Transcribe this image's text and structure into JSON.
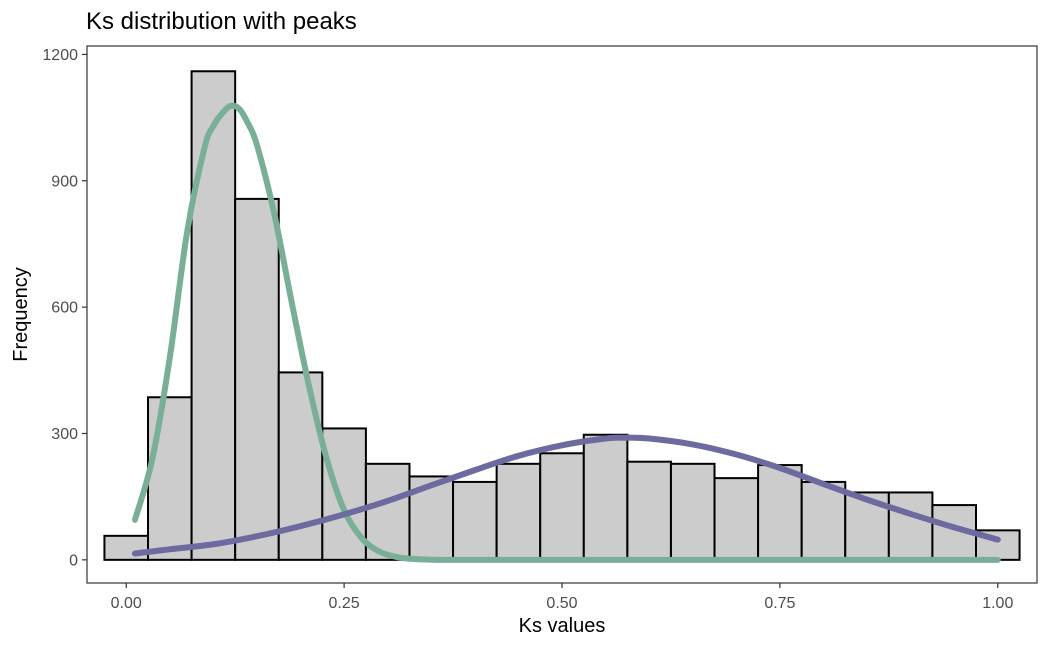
{
  "chart_data": {
    "type": "bar",
    "title": "Ks distribution with peaks",
    "xlabel": "Ks values",
    "ylabel": "Frequency",
    "xlim": [
      -0.045,
      1.045
    ],
    "ylim": [
      -55,
      1220
    ],
    "x_ticks": [
      0.0,
      0.25,
      0.5,
      0.75,
      1.0
    ],
    "x_tick_labels": [
      "0.00",
      "0.25",
      "0.50",
      "0.75",
      "1.00"
    ],
    "y_ticks": [
      0,
      300,
      600,
      900,
      1200
    ],
    "y_tick_labels": [
      "0",
      "300",
      "600",
      "900",
      "1200"
    ],
    "grid": false,
    "bin_width": 0.05,
    "bin_centers": [
      0.0,
      0.05,
      0.1,
      0.15,
      0.2,
      0.25,
      0.3,
      0.35,
      0.4,
      0.45,
      0.5,
      0.55,
      0.6,
      0.65,
      0.7,
      0.75,
      0.8,
      0.85,
      0.9,
      0.95,
      1.0
    ],
    "values": [
      57,
      386,
      1160,
      857,
      445,
      312,
      228,
      198,
      185,
      228,
      253,
      297,
      233,
      228,
      194,
      225,
      185,
      160,
      160,
      130,
      70
    ],
    "bar_fill": "#cccccc",
    "bar_stroke": "#000000",
    "series": [
      {
        "type": "line",
        "color": "#7aaf97",
        "x": [
          0.01,
          0.03,
          0.05,
          0.07,
          0.09,
          0.1,
          0.11,
          0.12,
          0.13,
          0.14,
          0.15,
          0.17,
          0.19,
          0.21,
          0.23,
          0.25,
          0.27,
          0.29,
          0.31,
          0.33,
          0.36,
          0.4,
          0.5,
          0.6,
          0.7,
          0.8,
          0.9,
          1.0
        ],
        "y": [
          95,
          240,
          480,
          780,
          980,
          1030,
          1060,
          1078,
          1070,
          1035,
          985,
          820,
          610,
          410,
          240,
          118,
          52,
          20,
          7,
          2,
          0,
          0,
          0,
          0,
          0,
          0,
          0,
          0
        ]
      },
      {
        "type": "line",
        "color": "#6c6a9f",
        "x": [
          0.01,
          0.05,
          0.1,
          0.15,
          0.2,
          0.25,
          0.3,
          0.35,
          0.4,
          0.45,
          0.5,
          0.55,
          0.57,
          0.6,
          0.65,
          0.7,
          0.75,
          0.8,
          0.85,
          0.9,
          0.95,
          1.0
        ],
        "y": [
          15,
          25,
          37,
          56,
          80,
          108,
          140,
          177,
          213,
          247,
          272,
          288,
          290,
          288,
          274,
          250,
          218,
          180,
          143,
          109,
          77,
          48
        ]
      }
    ]
  }
}
